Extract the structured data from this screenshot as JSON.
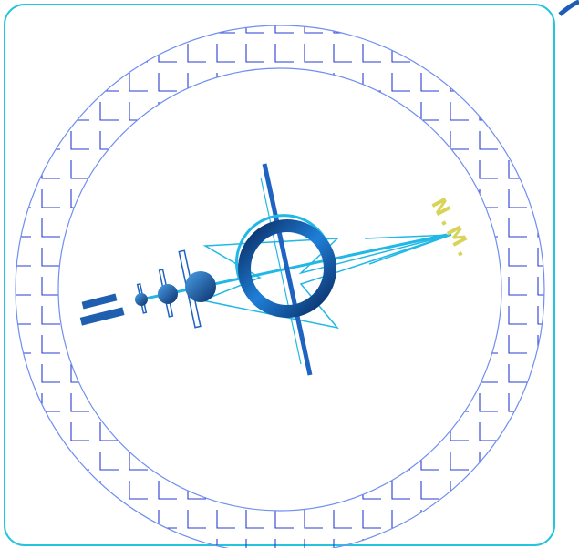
{
  "label": "N.M."
}
